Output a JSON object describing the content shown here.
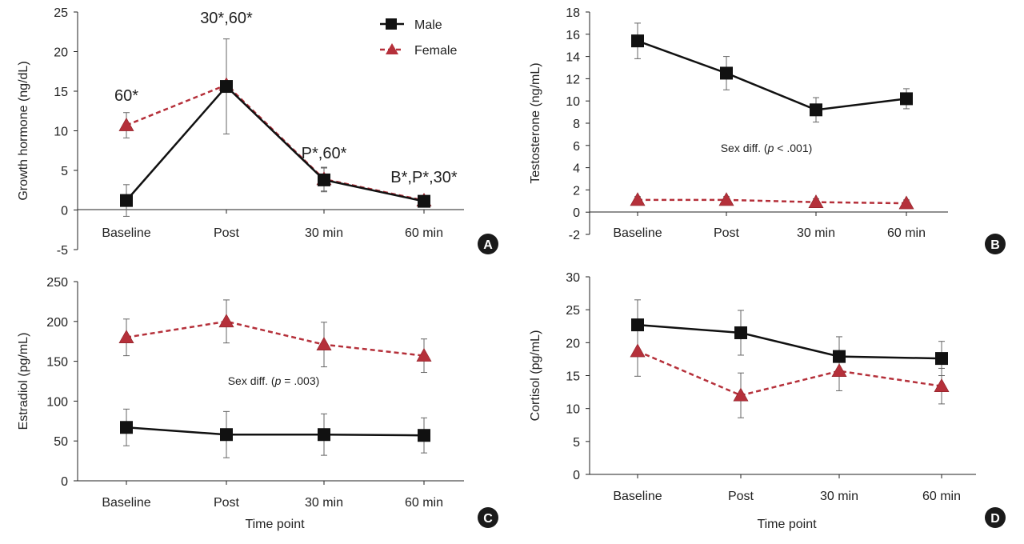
{
  "colors": {
    "male": "#111111",
    "female": "#b5303a",
    "axis": "#222222",
    "badge": "#1a1a1a"
  },
  "legend": {
    "male": "Male",
    "female": "Female"
  },
  "chart_data": [
    {
      "panel": "A",
      "type": "line",
      "categories": [
        "Baseline",
        "Post",
        "30 min",
        "60 min"
      ],
      "ylabel": "Growth hormone (ng/dL)",
      "xlabel": "",
      "ylim": [
        -5,
        25
      ],
      "yticks": [
        -5,
        0,
        5,
        10,
        15,
        20,
        25
      ],
      "grid": false,
      "legend_placement": "top-right",
      "series": [
        {
          "name": "Male",
          "values": [
            1.2,
            15.6,
            3.8,
            1.1
          ],
          "errors": [
            2.0,
            6.0,
            1.5,
            0.5
          ]
        },
        {
          "name": "Female",
          "values": [
            10.7,
            15.8,
            3.9,
            1.2
          ],
          "errors": [
            1.6,
            0.4,
            1.5,
            0.4
          ]
        }
      ],
      "annotations": [
        {
          "text": "60*",
          "category": "Baseline",
          "y": 13.8
        },
        {
          "text": "30*,60*",
          "category": "Post",
          "y": 23.6
        },
        {
          "text": "P*,60*",
          "category": "30 min",
          "y": 6.5
        },
        {
          "text": "B*,P*,30*",
          "category": "60 min",
          "y": 3.5
        }
      ]
    },
    {
      "panel": "B",
      "type": "line",
      "categories": [
        "Baseline",
        "Post",
        "30 min",
        "60 min"
      ],
      "ylabel": "Testosterone (ng/mL)",
      "xlabel": "",
      "ylim": [
        -2,
        18
      ],
      "yticks": [
        -2,
        0,
        2,
        4,
        6,
        8,
        10,
        12,
        14,
        16,
        18
      ],
      "grid": false,
      "series": [
        {
          "name": "Male",
          "values": [
            15.4,
            12.5,
            9.2,
            10.2
          ],
          "errors": [
            1.6,
            1.5,
            1.1,
            0.9
          ]
        },
        {
          "name": "Female",
          "values": [
            1.1,
            1.1,
            0.9,
            0.8
          ],
          "errors": [
            0.3,
            0.3,
            0.3,
            0.3
          ]
        }
      ],
      "annotation_prefix": "Sex diff. (",
      "annotation_p": "p",
      "annotation_suffix": " < .001)"
    },
    {
      "panel": "C",
      "type": "line",
      "categories": [
        "Baseline",
        "Post",
        "30 min",
        "60 min"
      ],
      "ylabel": "Estradiol (pg/mL)",
      "xlabel": "Time point",
      "ylim": [
        0,
        250
      ],
      "yticks": [
        0,
        50,
        100,
        150,
        200,
        250
      ],
      "grid": false,
      "series": [
        {
          "name": "Male",
          "values": [
            67,
            58,
            58,
            57
          ],
          "errors": [
            23,
            29,
            26,
            22
          ]
        },
        {
          "name": "Female",
          "values": [
            180,
            200,
            171,
            157
          ],
          "errors": [
            23,
            27,
            28,
            21
          ]
        }
      ],
      "annotation_prefix": "Sex diff. (",
      "annotation_p": "p",
      "annotation_suffix": " = .003)"
    },
    {
      "panel": "D",
      "type": "line",
      "categories": [
        "Baseline",
        "Post",
        "30 min",
        "60 min"
      ],
      "ylabel": "Cortisol (pg/mL)",
      "xlabel": "Time point",
      "ylim": [
        0,
        30
      ],
      "yticks": [
        0,
        5,
        10,
        15,
        20,
        25,
        30
      ],
      "grid": false,
      "series": [
        {
          "name": "Male",
          "values": [
            22.7,
            21.5,
            17.9,
            17.6
          ],
          "errors": [
            3.8,
            3.4,
            3.0,
            2.6
          ]
        },
        {
          "name": "Female",
          "values": [
            18.7,
            12.0,
            15.7,
            13.4
          ],
          "errors": [
            3.8,
            3.4,
            3.0,
            2.7
          ]
        }
      ]
    }
  ]
}
